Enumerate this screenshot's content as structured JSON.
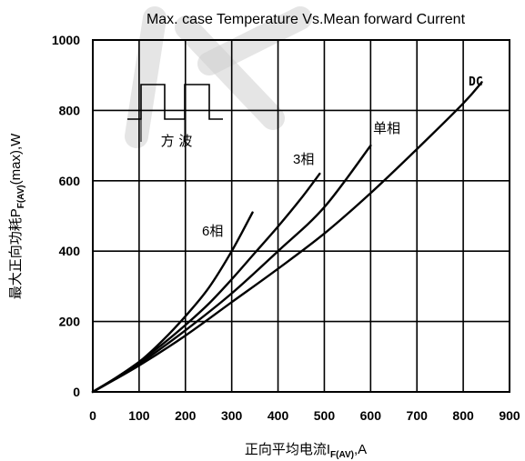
{
  "chart_data": {
    "type": "line",
    "title": "Max. case Temperature Vs.Mean forward Current",
    "xlabel": {
      "main": "正向平均电流I",
      "sub": "F(AV)",
      "suffix": ",A"
    },
    "ylabel": {
      "main": "最大正向功耗P",
      "sub": "F(AV)",
      "suffix": "(max),W"
    },
    "xlim": [
      0,
      900
    ],
    "ylim": [
      0,
      1000
    ],
    "x_ticks": [
      0,
      100,
      200,
      300,
      400,
      500,
      600,
      700,
      800,
      900
    ],
    "y_ticks": [
      0,
      200,
      400,
      600,
      800,
      1000
    ],
    "x_tick_labels": [
      "0",
      "100",
      "200",
      "300",
      "400",
      "500",
      "600",
      "700",
      "800",
      "900"
    ],
    "y_tick_labels": [
      "0",
      "200",
      "400",
      "600",
      "800",
      "1000"
    ],
    "grid": true,
    "series": [
      {
        "name": "6相",
        "x": [
          0,
          50,
          100,
          150,
          200,
          250,
          300,
          345
        ],
        "y": [
          0,
          40,
          85,
          145,
          215,
          295,
          400,
          510
        ]
      },
      {
        "name": "3相",
        "x": [
          0,
          50,
          100,
          150,
          200,
          250,
          300,
          350,
          400,
          450,
          490
        ],
        "y": [
          0,
          40,
          85,
          135,
          190,
          250,
          320,
          395,
          470,
          550,
          620
        ]
      },
      {
        "name": "单相",
        "x": [
          0,
          100,
          200,
          300,
          400,
          500,
          600
        ],
        "y": [
          0,
          80,
          175,
          280,
          400,
          525,
          700
        ]
      },
      {
        "name": "DC",
        "x": [
          0,
          100,
          200,
          300,
          400,
          500,
          600,
          700,
          800,
          840
        ],
        "y": [
          0,
          75,
          160,
          255,
          350,
          450,
          565,
          690,
          820,
          880
        ]
      }
    ],
    "series_labels_text": [
      "6相",
      "3相",
      "单相",
      "DC"
    ],
    "inset": {
      "label": "方 波"
    }
  }
}
